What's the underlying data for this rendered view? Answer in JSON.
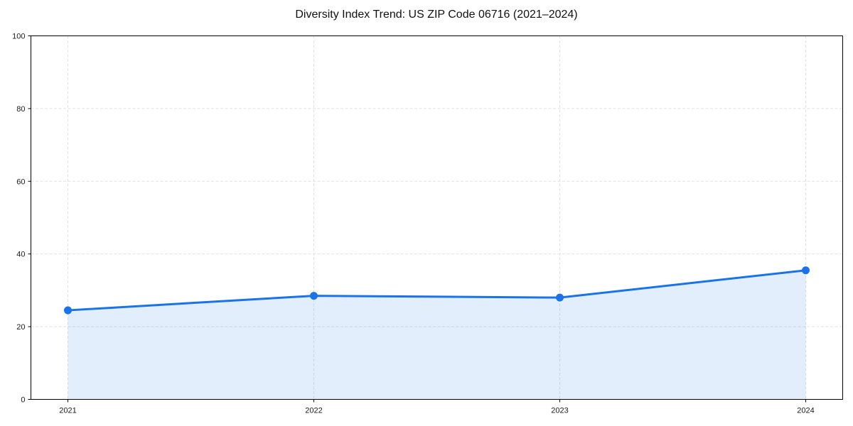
{
  "chart_data": {
    "type": "area",
    "title": "Diversity Index Trend: US ZIP Code 06716 (2021–2024)",
    "categories": [
      "2021",
      "2022",
      "2023",
      "2024"
    ],
    "series": [
      {
        "name": "Diversity Index",
        "values": [
          24.5,
          28.5,
          28.0,
          35.5
        ]
      }
    ],
    "xlabel": "",
    "ylabel": "",
    "ylim": [
      0,
      100
    ],
    "yticks": [
      0,
      20,
      40,
      60,
      80,
      100
    ],
    "grid": "dashed",
    "legend": "none",
    "colors": {
      "line": "#1a73e8",
      "fill": "rgba(26,115,232,0.12)",
      "grid": "#e2e2e2",
      "spine": "#000000",
      "tick_text": "#1a1a1a",
      "background": "#ffffff"
    }
  }
}
